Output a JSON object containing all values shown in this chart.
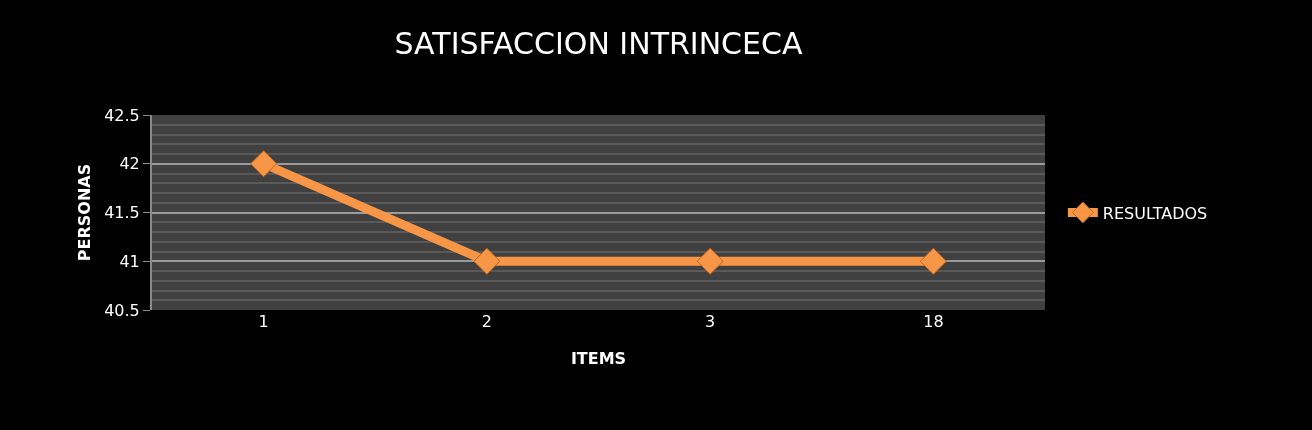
{
  "chart_data": {
    "type": "line",
    "title": "SATISFACCION INTRINCECA",
    "xlabel": "ITEMS",
    "ylabel": "PERSONAS",
    "categories": [
      "1",
      "2",
      "3",
      "18"
    ],
    "series": [
      {
        "name": "RESULTADOS",
        "color": "#f79646",
        "values": [
          42,
          41,
          41,
          41
        ]
      }
    ],
    "ylim": [
      40.5,
      42.5
    ],
    "yticks": [
      40.5,
      41,
      41.5,
      42,
      42.5
    ],
    "grid": "y",
    "legend": "right",
    "marker": "diamond",
    "line_style": "solid"
  }
}
